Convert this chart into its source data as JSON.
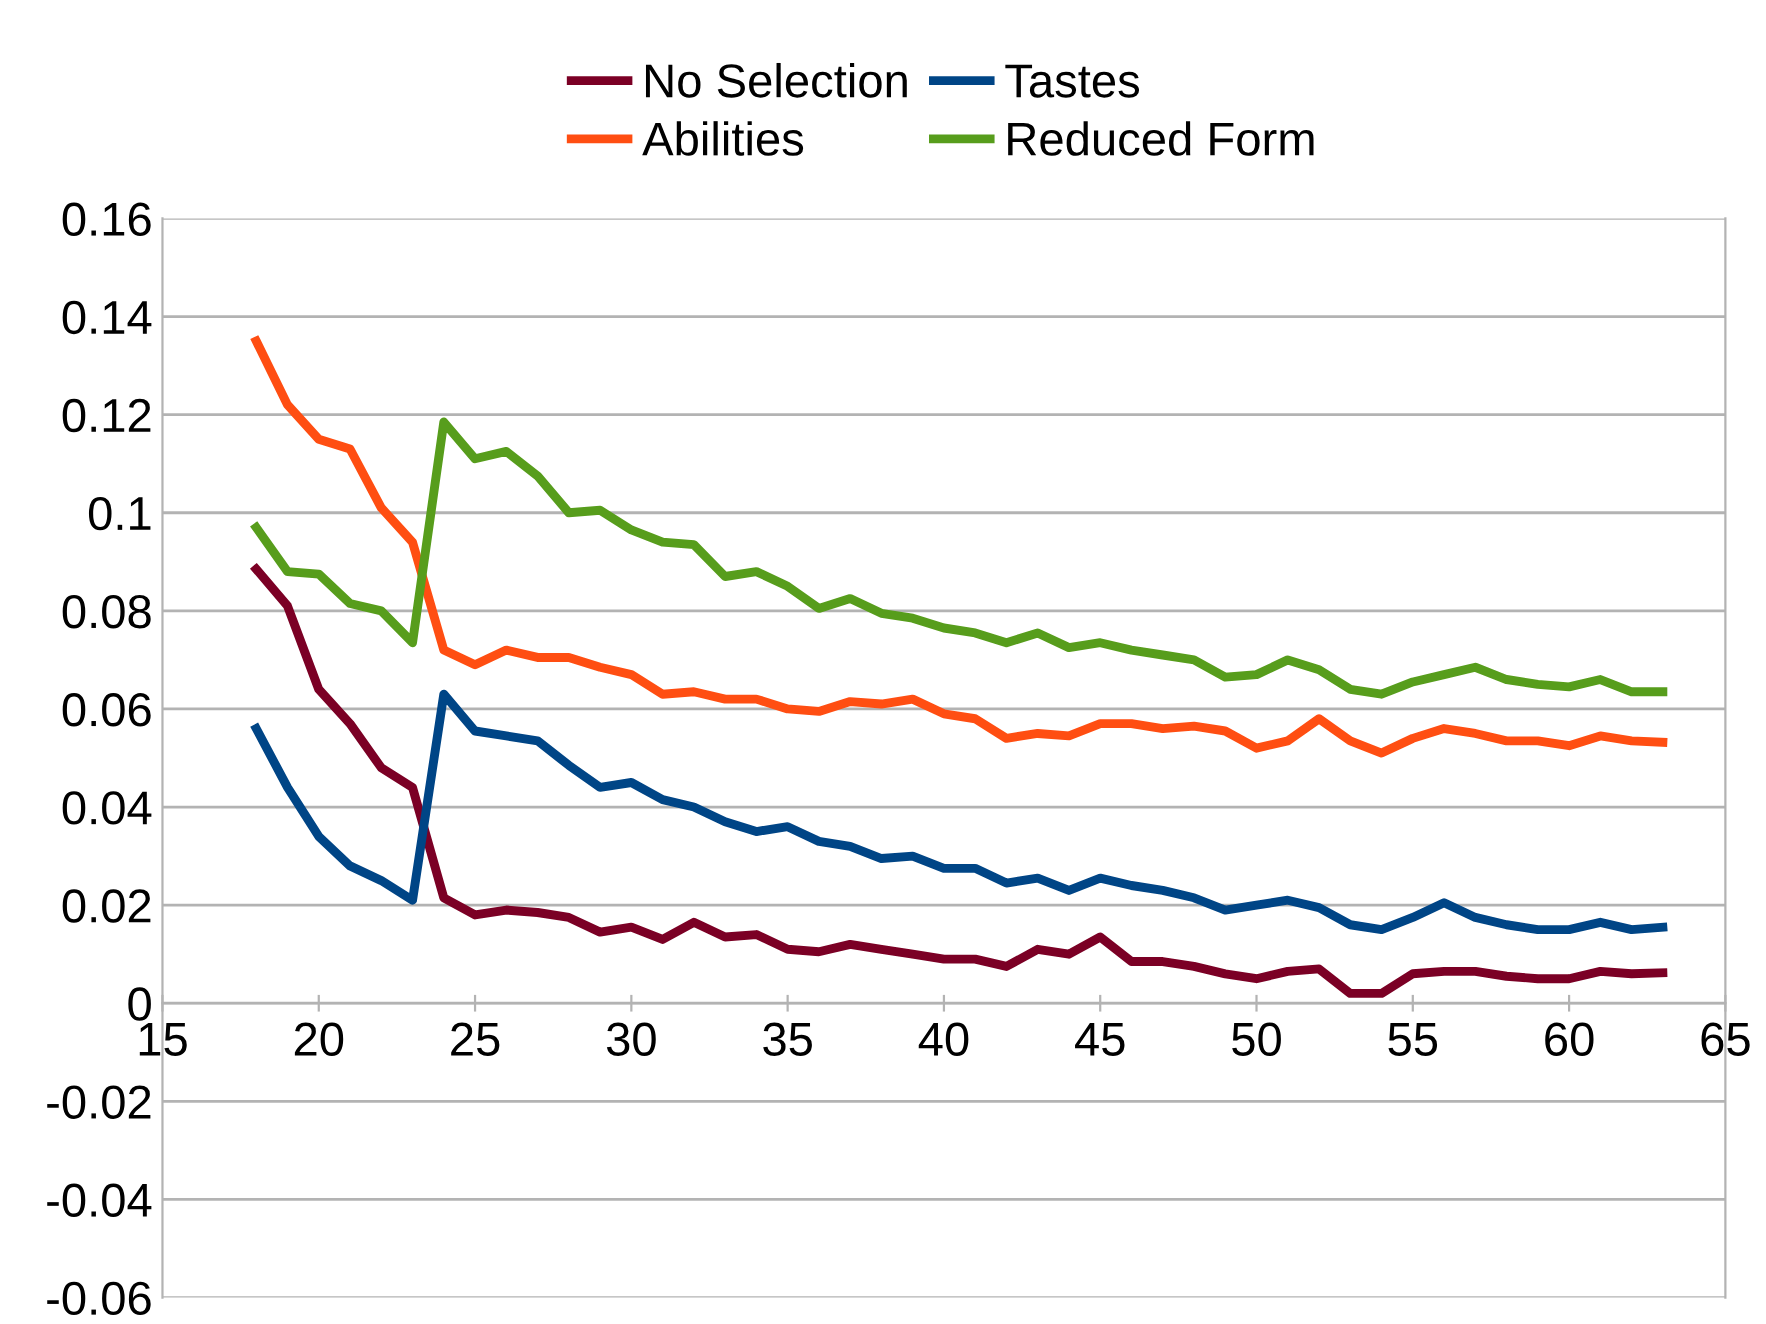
{
  "chart_data": {
    "type": "line",
    "x": [
      18,
      19,
      20,
      21,
      22,
      23,
      24,
      25,
      26,
      27,
      28,
      29,
      30,
      31,
      32,
      33,
      34,
      35,
      36,
      37,
      38,
      39,
      40,
      41,
      42,
      43,
      44,
      45,
      46,
      47,
      48,
      49,
      50,
      51,
      52,
      53,
      54,
      55,
      56,
      57,
      58,
      59,
      60,
      61,
      62,
      63
    ],
    "series": [
      {
        "name": "No Selection",
        "color": "#7b0025",
        "values": [
          0.0885,
          0.081,
          0.064,
          0.057,
          0.048,
          0.044,
          0.0215,
          0.018,
          0.019,
          0.0185,
          0.0175,
          0.0145,
          0.0155,
          0.013,
          0.0165,
          0.0135,
          0.014,
          0.011,
          0.0105,
          0.012,
          0.011,
          0.01,
          0.009,
          0.009,
          0.0075,
          0.011,
          0.01,
          0.0135,
          0.0085,
          0.0085,
          0.0075,
          0.006,
          0.005,
          0.0065,
          0.007,
          0.002,
          0.002,
          0.006,
          0.0065,
          0.0065,
          0.0055,
          0.005,
          0.005,
          0.0065,
          0.006,
          0.0062
        ]
      },
      {
        "name": "Abilities",
        "color": "#ff4e12",
        "values": [
          0.135,
          0.122,
          0.115,
          0.113,
          0.101,
          0.094,
          0.072,
          0.069,
          0.072,
          0.0705,
          0.0705,
          0.0685,
          0.067,
          0.063,
          0.0635,
          0.062,
          0.062,
          0.06,
          0.0595,
          0.0615,
          0.061,
          0.062,
          0.059,
          0.058,
          0.054,
          0.055,
          0.0545,
          0.057,
          0.057,
          0.056,
          0.0565,
          0.0555,
          0.052,
          0.0535,
          0.058,
          0.0535,
          0.051,
          0.054,
          0.056,
          0.055,
          0.0535,
          0.0535,
          0.0525,
          0.0545,
          0.0535,
          0.0532
        ]
      },
      {
        "name": "Tastes",
        "color": "#004586",
        "values": [
          0.056,
          0.044,
          0.034,
          0.028,
          0.025,
          0.021,
          0.063,
          0.0555,
          0.0545,
          0.0535,
          0.0485,
          0.044,
          0.045,
          0.0415,
          0.04,
          0.037,
          0.035,
          0.036,
          0.033,
          0.032,
          0.0295,
          0.03,
          0.0275,
          0.0275,
          0.0245,
          0.0255,
          0.023,
          0.0255,
          0.024,
          0.023,
          0.0215,
          0.019,
          0.02,
          0.021,
          0.0195,
          0.016,
          0.015,
          0.0175,
          0.0205,
          0.0175,
          0.016,
          0.015,
          0.015,
          0.0165,
          0.015,
          0.0155
        ]
      },
      {
        "name": "Reduced Form",
        "color": "#579d1c",
        "values": [
          0.097,
          0.088,
          0.0875,
          0.0815,
          0.08,
          0.0735,
          0.1185,
          0.111,
          0.1125,
          0.1075,
          0.1,
          0.1005,
          0.0965,
          0.094,
          0.0935,
          0.087,
          0.088,
          0.085,
          0.0805,
          0.0825,
          0.0795,
          0.0785,
          0.0765,
          0.0755,
          0.0735,
          0.0755,
          0.0725,
          0.0735,
          0.072,
          0.071,
          0.07,
          0.0665,
          0.067,
          0.07,
          0.068,
          0.064,
          0.063,
          0.0655,
          0.067,
          0.0685,
          0.066,
          0.065,
          0.0645,
          0.066,
          0.0635,
          0.0635
        ]
      }
    ],
    "xlim": [
      15,
      65
    ],
    "xticks": [
      15,
      20,
      25,
      30,
      35,
      40,
      45,
      50,
      55,
      60,
      65
    ],
    "ylim": [
      -0.06,
      0.16
    ],
    "yticks": [
      -0.06,
      -0.04,
      -0.02,
      0,
      0.02,
      0.04,
      0.06,
      0.08,
      0.1,
      0.12,
      0.14,
      0.16
    ],
    "grid": "y",
    "legend": "top",
    "line_style": "solid"
  }
}
